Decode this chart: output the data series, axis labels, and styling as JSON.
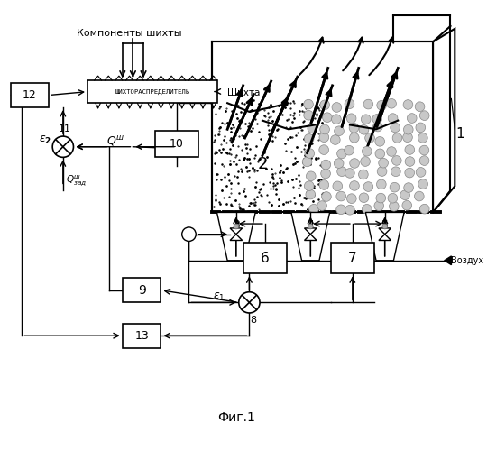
{
  "background_color": "#ffffff",
  "fig_label": "Фиг.1",
  "components_label": "Компоненты шихты",
  "shihta_label": "Шихта",
  "vozduh_label": "Воздух"
}
